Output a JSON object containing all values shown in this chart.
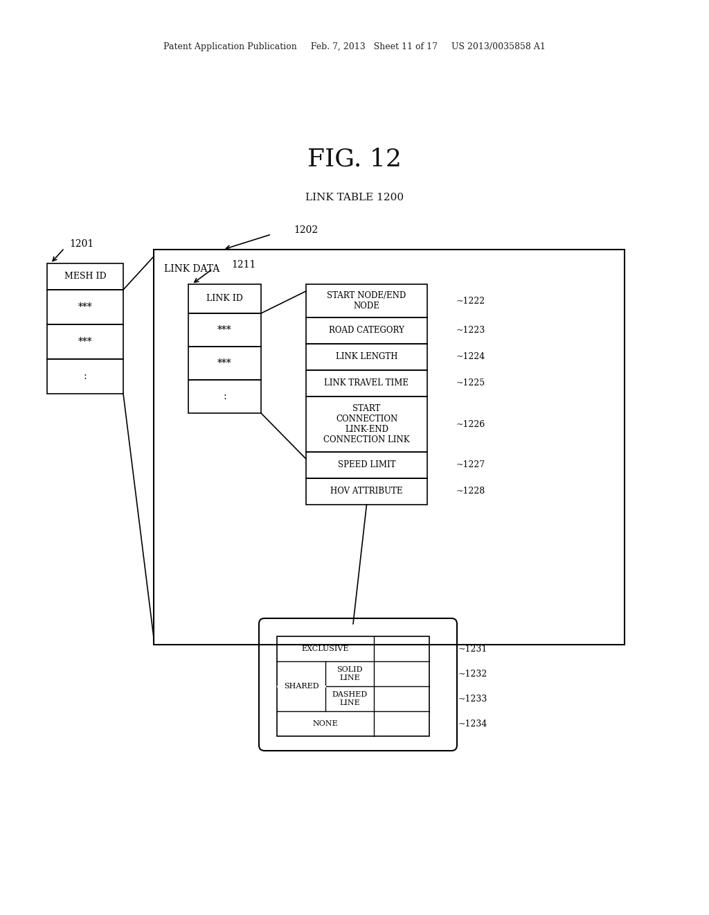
{
  "title_fig": "FIG. 12",
  "subtitle": "LINK TABLE 1200",
  "header_text": "Patent Application Publication     Feb. 7, 2013   Sheet 11 of 17     US 2013/0035858 A1",
  "bg_color": "#ffffff",
  "label_1201": "1201",
  "label_1202": "1202",
  "label_1211": "1211",
  "mesh_id_label": "MESH ID",
  "link_data_label": "LINK DATA",
  "link_id_label": "LINK ID",
  "fields": [
    {
      "text": "START NODE/END\nNODE",
      "ref": "1222"
    },
    {
      "text": "ROAD CATEGORY",
      "ref": "1223"
    },
    {
      "text": "LINK LENGTH",
      "ref": "1224"
    },
    {
      "text": "LINK TRAVEL TIME",
      "ref": "1225"
    },
    {
      "text": "START\nCONNECTION\nLINK-END\nCONNECTION LINK",
      "ref": "1226"
    },
    {
      "text": "SPEED LIMIT",
      "ref": "1227"
    },
    {
      "text": "HOV ATTRIBUTE",
      "ref": "1228"
    }
  ],
  "hov_rows": [
    {
      "label": "EXCLUSIVE",
      "sub": null,
      "ref": "1231"
    },
    {
      "label": "SHARED",
      "sub": "SOLID\nLINE",
      "ref": "1232"
    },
    {
      "label": null,
      "sub": "DASHED\nLINE",
      "ref": "1233"
    },
    {
      "label": "NONE",
      "sub": null,
      "ref": "1234"
    }
  ]
}
